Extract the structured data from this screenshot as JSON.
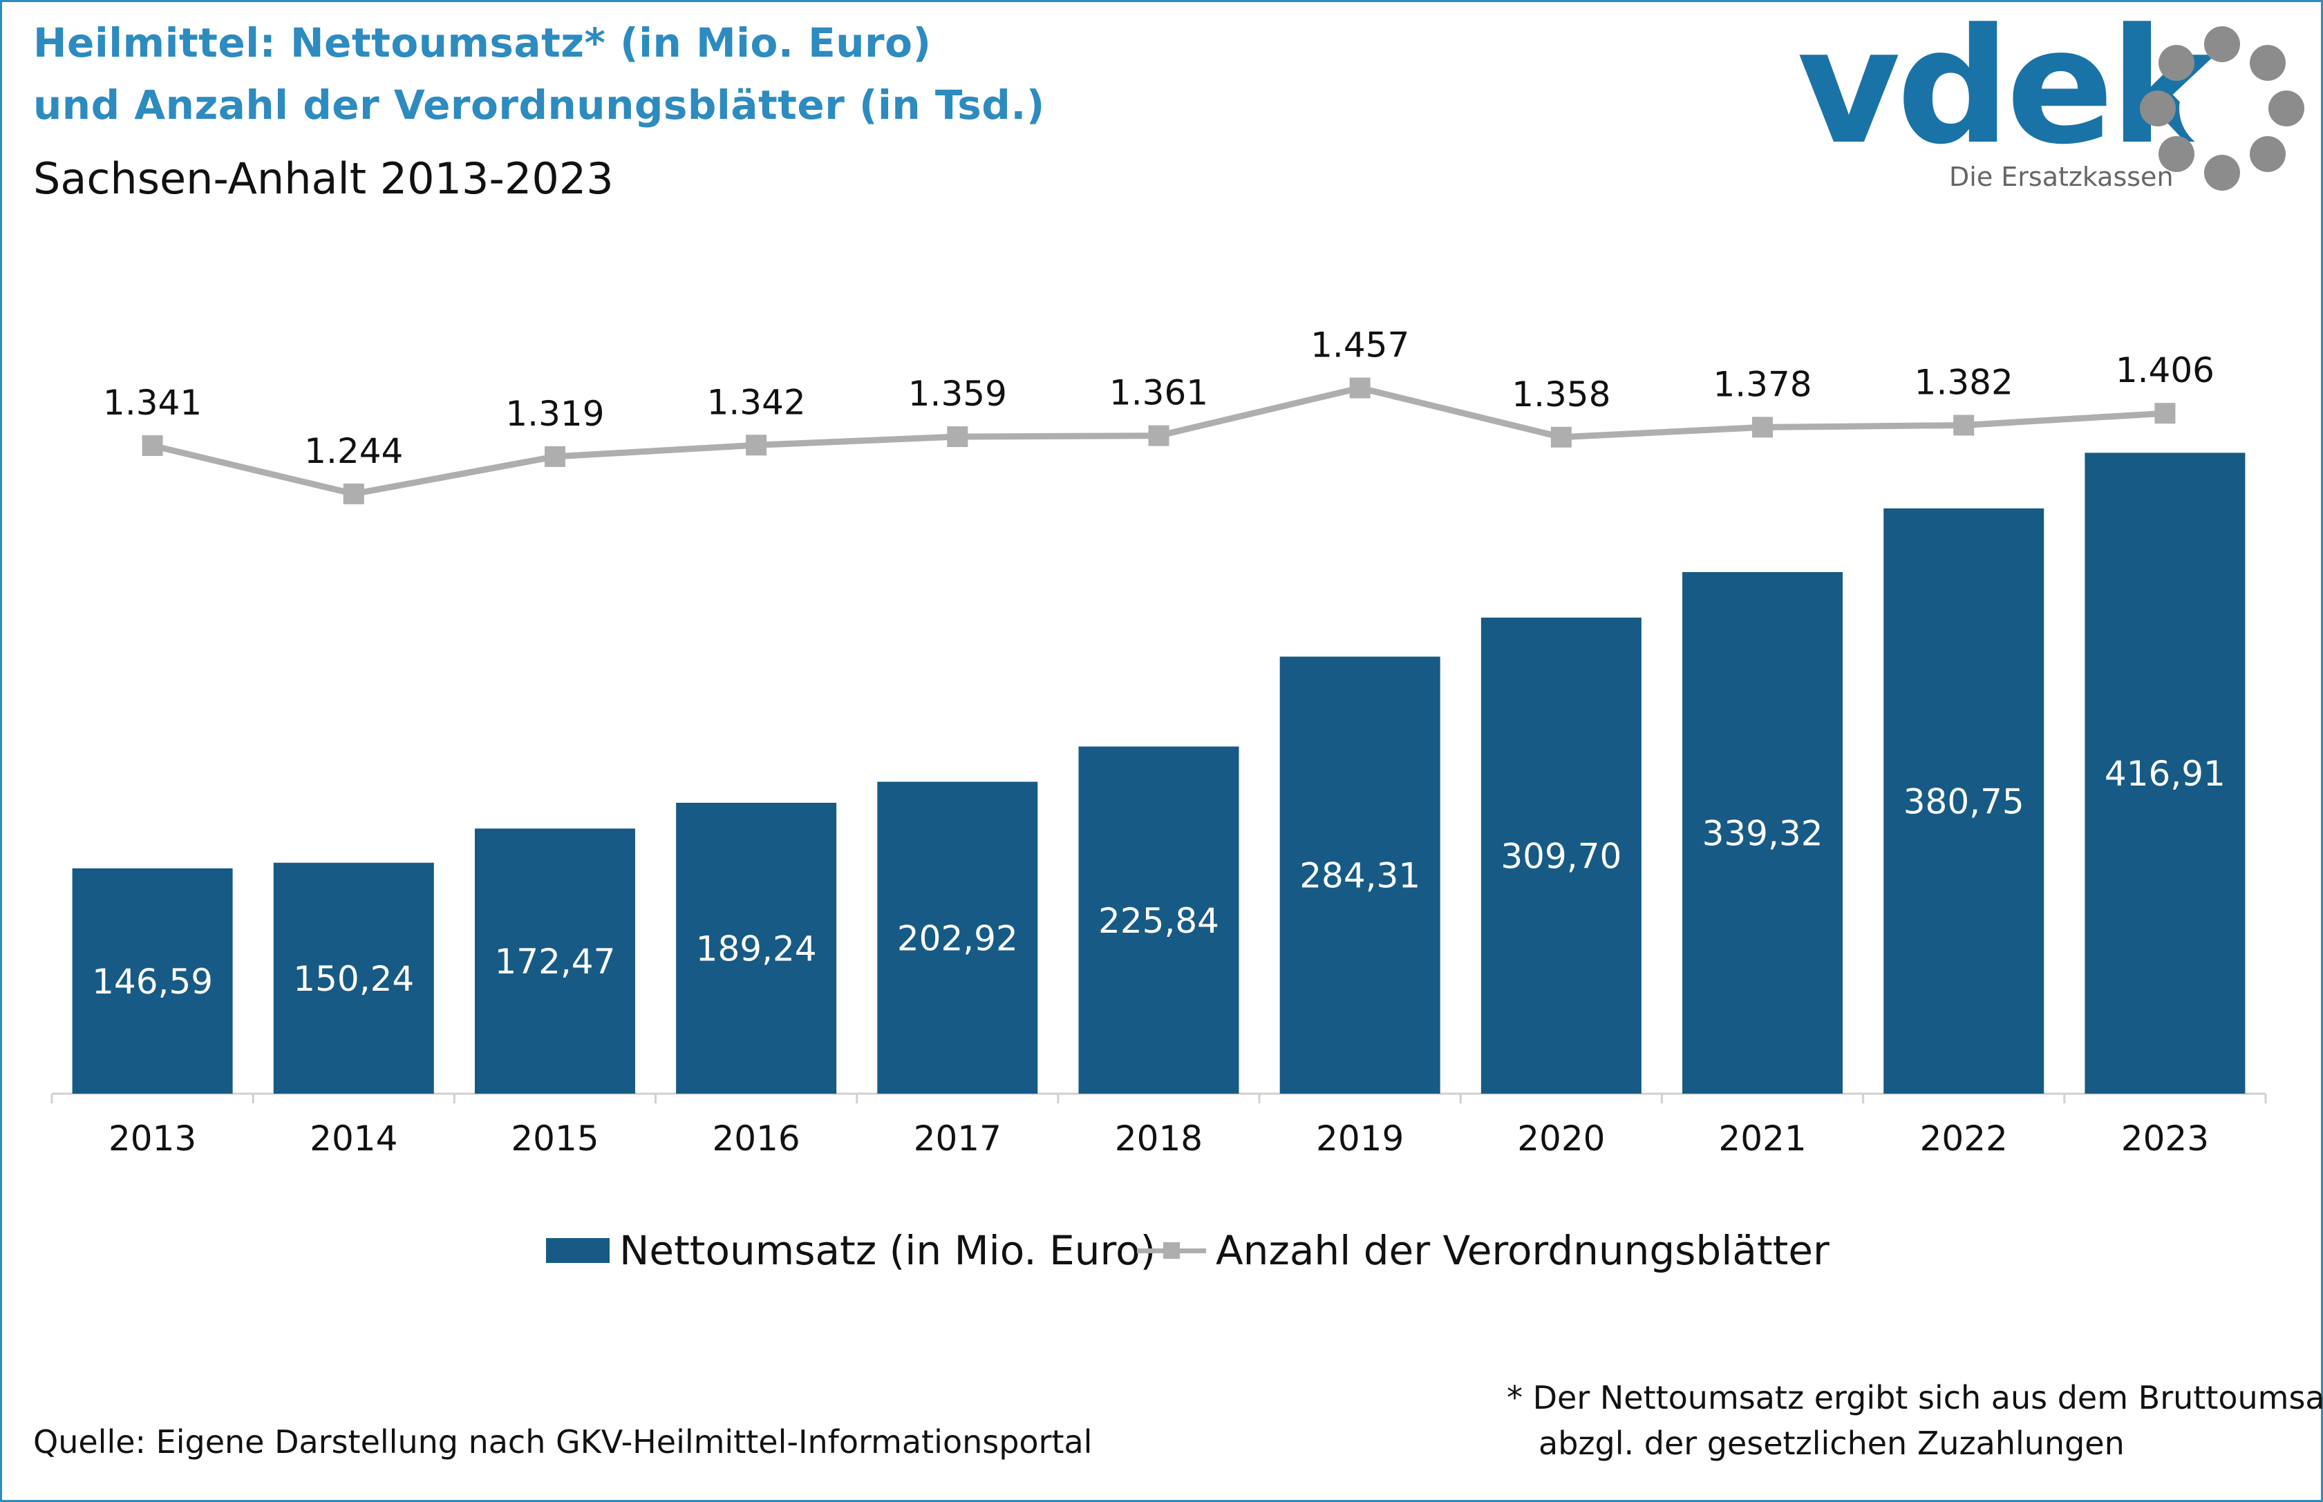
{
  "title_line1": "Heilmittel: Nettoumsatz* (in Mio. Euro)",
  "title_line2": "und Anzahl der Verordnungsblätter (in Tsd.)",
  "subtitle": "Sachsen-Anhalt 2013-2023",
  "logo": {
    "brand": "vdek",
    "tagline": "Die Ersatzkassen",
    "icon": "vdek-ring-logo"
  },
  "colors": {
    "title": "#2d8bbf",
    "bar": "#175a85",
    "line": "#aeaeae",
    "frame": "#2d8bbf"
  },
  "chart_data": {
    "type": "bar",
    "categories": [
      "2013",
      "2014",
      "2015",
      "2016",
      "2017",
      "2018",
      "2019",
      "2020",
      "2021",
      "2022",
      "2023"
    ],
    "series": [
      {
        "name": "Nettoumsatz (in Mio. Euro)",
        "type": "bar",
        "values": [
          146.59,
          150.24,
          172.47,
          189.24,
          202.92,
          225.84,
          284.31,
          309.7,
          339.32,
          380.75,
          416.91
        ],
        "labels": [
          "146,59",
          "150,24",
          "172,47",
          "189,24",
          "202,92",
          "225,84",
          "284,31",
          "309,70",
          "339,32",
          "380,75",
          "416,91"
        ]
      },
      {
        "name": "Anzahl der Verordnungsblätter",
        "type": "line",
        "values": [
          1341,
          1244,
          1319,
          1342,
          1359,
          1361,
          1457,
          1358,
          1378,
          1382,
          1406
        ],
        "labels": [
          "1.341",
          "1.244",
          "1.319",
          "1.342",
          "1.359",
          "1.361",
          "1.457",
          "1.358",
          "1.378",
          "1.382",
          "1.406"
        ]
      }
    ],
    "legend": "bottom"
  },
  "source": "Quelle: Eigene Darstellung nach GKV-Heilmittel-Informationsportal",
  "footnote_line1": "* Der Nettoumsatz ergibt sich aus dem Bruttoumsatz",
  "footnote_line2": "abzgl. der gesetzlichen Zuzahlungen"
}
